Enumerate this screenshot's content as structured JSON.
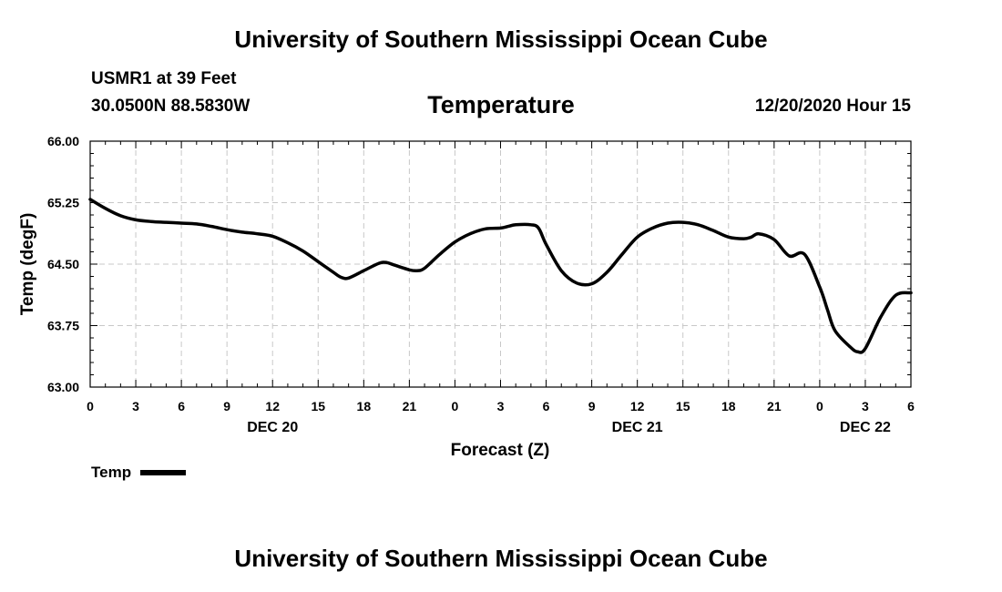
{
  "header": {
    "title": "University of Southern Mississippi Ocean Cube",
    "station": "USMR1 at 39 Feet",
    "coordinates": "30.0500N 88.5830W",
    "parameter": "Temperature",
    "datetime": "12/20/2020 Hour 15"
  },
  "footer": {
    "title": "University of Southern Mississippi Ocean Cube"
  },
  "chart_data": {
    "type": "line",
    "title": "Temperature",
    "xlabel": "Forecast (Z)",
    "ylabel": "Temp (degF)",
    "ylim": [
      63.0,
      66.0
    ],
    "yticks": [
      "63.00",
      "63.75",
      "64.50",
      "65.25",
      "66.00"
    ],
    "xlim": [
      0,
      54
    ],
    "xticks": [
      {
        "x": 0,
        "label": "0"
      },
      {
        "x": 3,
        "label": "3"
      },
      {
        "x": 6,
        "label": "6"
      },
      {
        "x": 9,
        "label": "9"
      },
      {
        "x": 12,
        "label": "12"
      },
      {
        "x": 15,
        "label": "15"
      },
      {
        "x": 18,
        "label": "18"
      },
      {
        "x": 21,
        "label": "21"
      },
      {
        "x": 24,
        "label": "0"
      },
      {
        "x": 27,
        "label": "3"
      },
      {
        "x": 30,
        "label": "6"
      },
      {
        "x": 33,
        "label": "9"
      },
      {
        "x": 36,
        "label": "12"
      },
      {
        "x": 39,
        "label": "15"
      },
      {
        "x": 42,
        "label": "18"
      },
      {
        "x": 45,
        "label": "21"
      },
      {
        "x": 48,
        "label": "0"
      },
      {
        "x": 51,
        "label": "3"
      },
      {
        "x": 54,
        "label": "6"
      }
    ],
    "date_labels": [
      {
        "x": 12,
        "label": "DEC 20"
      },
      {
        "x": 36,
        "label": "DEC 21"
      },
      {
        "x": 51,
        "label": "DEC 22"
      }
    ],
    "grid": true,
    "legend_position": "bottom-left",
    "series": [
      {
        "name": "Temp",
        "color": "#000000",
        "x": [
          0,
          1,
          2,
          3,
          4,
          5,
          6,
          7,
          8,
          9,
          10,
          11,
          12,
          13,
          14,
          15,
          16,
          16.5,
          17,
          18,
          19,
          19.5,
          20,
          21,
          21.5,
          22,
          23,
          24,
          25,
          26,
          27,
          27.5,
          28,
          29,
          29.5,
          30,
          31,
          32,
          33,
          34,
          35,
          36,
          37,
          38,
          39,
          40,
          41,
          42,
          43,
          43.5,
          44,
          45,
          46,
          47,
          48,
          48.5,
          49,
          50,
          50.5,
          51,
          52,
          53,
          54
        ],
        "values": [
          65.29,
          65.18,
          65.09,
          65.04,
          65.02,
          65.01,
          65.0,
          64.99,
          64.96,
          64.92,
          64.89,
          64.87,
          64.84,
          64.76,
          64.66,
          64.53,
          64.4,
          64.34,
          64.33,
          64.42,
          64.51,
          64.52,
          64.49,
          64.43,
          64.42,
          64.45,
          64.62,
          64.77,
          64.87,
          64.93,
          64.94,
          64.96,
          64.98,
          64.98,
          64.94,
          64.74,
          64.42,
          64.27,
          64.26,
          64.4,
          64.62,
          64.83,
          64.94,
          65.0,
          65.01,
          64.98,
          64.91,
          64.83,
          64.81,
          64.83,
          64.87,
          64.8,
          64.6,
          64.62,
          64.22,
          63.95,
          63.69,
          63.49,
          63.43,
          63.47,
          63.85,
          64.12,
          64.15
        ]
      }
    ]
  }
}
